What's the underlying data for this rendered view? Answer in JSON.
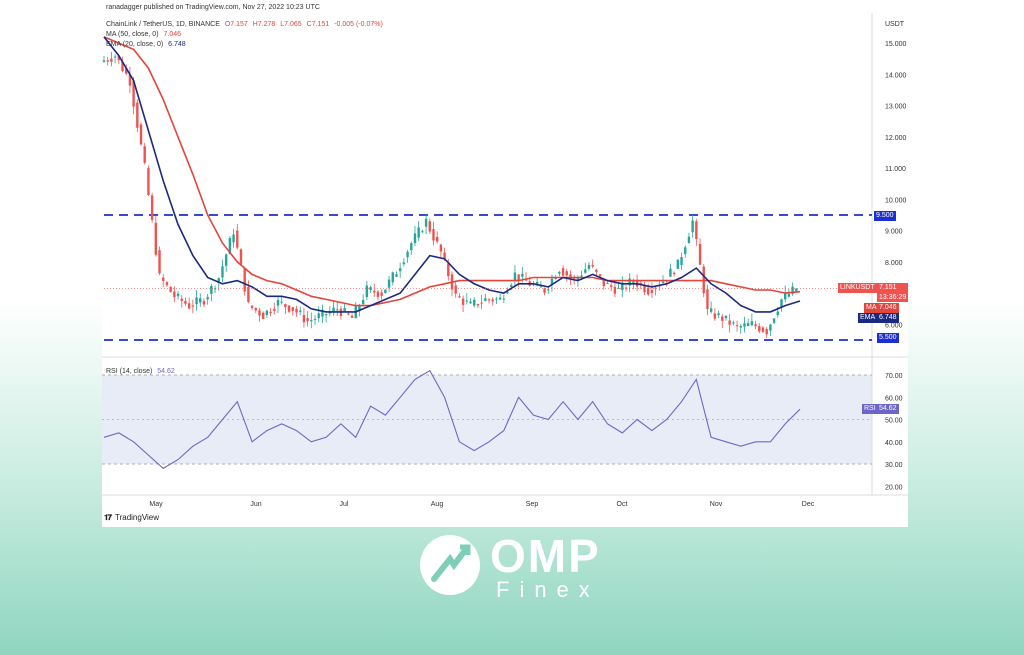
{
  "header": {
    "publisher": "ranadagger published on TradingView.com, Nov 27, 2022 10:23 UTC",
    "symbol": "ChainLink / TetherUS, 1D, BINANCE",
    "ohlc": {
      "o": "O7.157",
      "h": "H7.278",
      "l": "L7.065",
      "c": "C7.151",
      "chg": "-0.005 (-0.07%)"
    },
    "ma_label": "MA (50, close, 0)",
    "ma_value": "7.046",
    "ema_label": "EMA (20, close, 0)",
    "ema_value": "6.748",
    "rsi_label": "RSI (14, close)",
    "rsi_value": "54.62"
  },
  "tags": {
    "resistance": "9.500",
    "symbol": "LINKUSDT",
    "price": "7.151",
    "countdown": "13:36:29",
    "ma": "MA",
    "ma_value": "7.046",
    "ema": "EMA",
    "ema_value": "6.748",
    "support": "5.500",
    "rsi": "RSI",
    "rsi_value": "54.62"
  },
  "footer": {
    "tradingview": "TradingView"
  },
  "brand": {
    "name": "OMP",
    "sub": "Finex"
  },
  "colors": {
    "ma": "#e2453b",
    "ema": "#1a2a80",
    "rsi": "#6e66c6",
    "up": "#26a69a",
    "down": "#ef5350",
    "level": "#1c2fd1"
  },
  "chart_data": [
    {
      "type": "line",
      "title": "ChainLink / TetherUS, 1D, BINANCE",
      "ylabel": "USDT",
      "x_ticks": [
        "May",
        "Jun",
        "Jul",
        "Aug",
        "Sep",
        "Oct",
        "Nov",
        "Dec"
      ],
      "y_ticks": [
        "5.000",
        "6.000",
        "7.000",
        "8.000",
        "9.000",
        "10.000",
        "11.000",
        "12.000",
        "13.000",
        "14.000",
        "15.000"
      ],
      "ylim": [
        5,
        15.5
      ],
      "x": [
        "Apr 26",
        "May 1",
        "May 6",
        "May 11",
        "May 16",
        "May 21",
        "May 26",
        "Jun 1",
        "Jun 6",
        "Jun 10",
        "Jun 14",
        "Jun 18",
        "Jun 23",
        "Jun 28",
        "Jul 3",
        "Jul 8",
        "Jul 13",
        "Jul 18",
        "Jul 23",
        "Jul 28",
        "Aug 2",
        "Aug 7",
        "Aug 11",
        "Aug 15",
        "Aug 20",
        "Aug 25",
        "Aug 30",
        "Sep 4",
        "Sep 9",
        "Sep 14",
        "Sep 19",
        "Sep 24",
        "Sep 29",
        "Oct 4",
        "Oct 9",
        "Oct 14",
        "Oct 19",
        "Oct 24",
        "Oct 29",
        "Nov 2",
        "Nov 5",
        "Nov 8",
        "Nov 10",
        "Nov 14",
        "Nov 18",
        "Nov 21",
        "Nov 24",
        "Nov 27"
      ],
      "series": [
        {
          "name": "LINKUSDT",
          "values": [
            14.4,
            14.6,
            13.8,
            11.0,
            7.5,
            6.9,
            6.6,
            6.8,
            7.5,
            9.0,
            6.6,
            6.3,
            6.7,
            6.5,
            6.1,
            6.3,
            6.5,
            6.2,
            7.1,
            7.0,
            7.7,
            8.6,
            9.3,
            8.3,
            6.9,
            6.6,
            6.8,
            6.8,
            7.6,
            7.3,
            7.1,
            7.8,
            7.4,
            7.9,
            7.3,
            7.1,
            7.4,
            7.1,
            7.4,
            7.9,
            9.3,
            6.4,
            6.2,
            5.9,
            6.0,
            5.8,
            6.8,
            7.151
          ]
        },
        {
          "name": "MA",
          "values": [
            15.2,
            15.0,
            14.8,
            14.2,
            13.2,
            12.0,
            10.8,
            9.5,
            8.6,
            8.0,
            7.6,
            7.4,
            7.3,
            7.1,
            6.9,
            6.8,
            6.7,
            6.6,
            6.6,
            6.7,
            6.8,
            7.0,
            7.2,
            7.3,
            7.4,
            7.4,
            7.4,
            7.4,
            7.4,
            7.5,
            7.5,
            7.5,
            7.5,
            7.5,
            7.4,
            7.4,
            7.4,
            7.4,
            7.4,
            7.4,
            7.4,
            7.4,
            7.3,
            7.2,
            7.1,
            7.1,
            7.0,
            7.046
          ]
        },
        {
          "name": "EMA",
          "values": [
            15.2,
            14.6,
            13.8,
            12.2,
            10.6,
            9.2,
            8.2,
            7.5,
            7.3,
            7.4,
            7.2,
            6.9,
            6.9,
            6.8,
            6.5,
            6.4,
            6.4,
            6.4,
            6.6,
            6.8,
            7.0,
            7.6,
            8.2,
            8.1,
            7.6,
            7.3,
            7.1,
            7.0,
            7.3,
            7.3,
            7.2,
            7.5,
            7.4,
            7.6,
            7.4,
            7.3,
            7.3,
            7.2,
            7.3,
            7.5,
            7.8,
            7.3,
            7.0,
            6.6,
            6.4,
            6.4,
            6.6,
            6.748
          ]
        }
      ],
      "levels": [
        {
          "name": "resistance",
          "value": 9.5
        },
        {
          "name": "support",
          "value": 5.5
        }
      ]
    },
    {
      "type": "line",
      "title": "RSI (14, close)",
      "y_ticks": [
        "20.00",
        "30.00",
        "40.00",
        "50.00",
        "60.00",
        "70.00"
      ],
      "ylim": [
        17,
        75
      ],
      "bands": [
        30,
        70
      ],
      "midline": 50,
      "series": [
        {
          "name": "RSI",
          "values": [
            42,
            44,
            40,
            34,
            28,
            32,
            38,
            42,
            50,
            58,
            40,
            45,
            48,
            45,
            40,
            42,
            48,
            42,
            56,
            52,
            60,
            68,
            72,
            60,
            40,
            36,
            40,
            45,
            60,
            52,
            50,
            58,
            50,
            58,
            48,
            44,
            50,
            45,
            50,
            58,
            68,
            42,
            40,
            38,
            40,
            40,
            48,
            54.62
          ]
        }
      ]
    }
  ]
}
